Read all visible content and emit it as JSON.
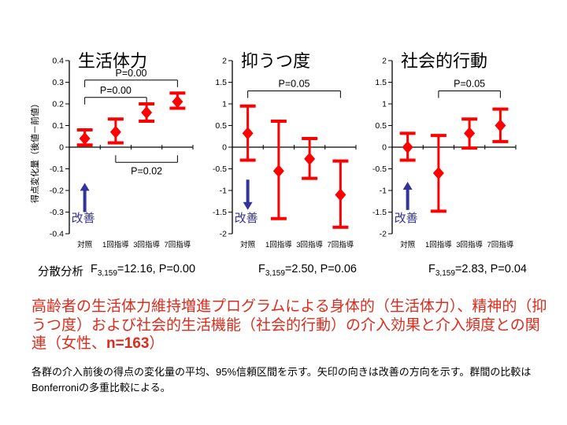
{
  "colors": {
    "series": "#ff0000",
    "arrow": "#333399",
    "summary_text": "#dd2b1c",
    "axis": "#000000"
  },
  "chart_data": [
    {
      "type": "errorbar",
      "title": "生活体力",
      "ylabel": "得点変化量（後値－前値）",
      "ylim": [
        -0.4,
        0.4
      ],
      "yticks": [
        "0.4",
        "0.3",
        "0.2",
        "0.1",
        "0",
        "-0.1",
        "-0.2",
        "-0.3",
        "-0.4"
      ],
      "categories": [
        "対照",
        "1回指導",
        "3回指導",
        "7回指導"
      ],
      "means": [
        0.04,
        0.07,
        0.16,
        0.21
      ],
      "ci_low": [
        0.01,
        0.02,
        0.12,
        0.18
      ],
      "ci_high": [
        0.08,
        0.13,
        0.2,
        0.25
      ],
      "brackets": [
        {
          "label": "P=0.00",
          "from": 0,
          "to": 3,
          "y": 0.31,
          "side": "above"
        },
        {
          "label": "P=0.00",
          "from": 0,
          "to": 2,
          "y": 0.23,
          "side": "above"
        },
        {
          "label": "P=0.02",
          "from": 1,
          "to": 3,
          "y": -0.07,
          "side": "below"
        }
      ],
      "arrow": {
        "direction": "up",
        "category": 0,
        "tail": -0.3,
        "tip": -0.165,
        "label": "改善"
      },
      "anova": {
        "f": "F",
        "sub": "3,159",
        "rest": "=12.16, P=0.00"
      }
    },
    {
      "type": "errorbar",
      "title": "抑うつ度",
      "ylabel": "",
      "ylim": [
        -2,
        2
      ],
      "yticks": [
        "2",
        "1.5",
        "1",
        "0.5",
        "0",
        "-0.5",
        "-1",
        "-1.5",
        "-2"
      ],
      "categories": [
        "対照",
        "1回指導",
        "3回指導",
        "7回指導"
      ],
      "means": [
        0.32,
        -0.55,
        -0.27,
        -1.1
      ],
      "ci_low": [
        -0.3,
        -1.65,
        -0.72,
        -1.85
      ],
      "ci_high": [
        0.95,
        0.6,
        0.2,
        -0.32
      ],
      "brackets": [
        {
          "label": "P=0.05",
          "from": 0,
          "to": 3,
          "y": 1.3,
          "side": "above"
        }
      ],
      "arrow": {
        "direction": "down",
        "category": 0,
        "tail": -0.75,
        "tip": -1.45,
        "label": "改善"
      },
      "anova": {
        "f": "F",
        "sub": "3,159",
        "rest": "=2.50, P=0.06"
      }
    },
    {
      "type": "errorbar",
      "title": "社会的行動",
      "ylabel": "",
      "ylim": [
        -2,
        2
      ],
      "yticks": [
        "2",
        "1.5",
        "1",
        "0.5",
        "0",
        "-0.5",
        "-1",
        "-1.5",
        "-2"
      ],
      "categories": [
        "対照",
        "1回指導",
        "3回指導",
        "7回指導"
      ],
      "means": [
        0.0,
        -0.6,
        0.32,
        0.5
      ],
      "ci_low": [
        -0.3,
        -1.48,
        -0.02,
        0.13
      ],
      "ci_high": [
        0.32,
        0.27,
        0.65,
        0.88
      ],
      "brackets": [
        {
          "label": "P=0.05",
          "from": 1,
          "to": 3,
          "y": 1.3,
          "side": "above"
        }
      ],
      "arrow": {
        "direction": "up",
        "category": 0,
        "tail": -1.45,
        "tip": -0.8,
        "label": "改善"
      },
      "anova": {
        "f": "F",
        "sub": "3,159",
        "rest": "=2.83, P=0.04"
      }
    }
  ],
  "anova_label": "分散分析",
  "summary": {
    "before_bold": "高齢者の生活体力維持増進プログラムによる身体的（生活体力）、精神的（抑うつ度）および社会的生活機能（社会的行動）の介入効果と介入頻度との関連（女性、",
    "bold": "n=163",
    "after_bold": "）"
  },
  "caption": "各群の介入前後の得点の変化量の平均、95%信頼区間を示す。矢印の向きは改善の方向を示す。群間の比較はBonferroniの多重比較による。"
}
